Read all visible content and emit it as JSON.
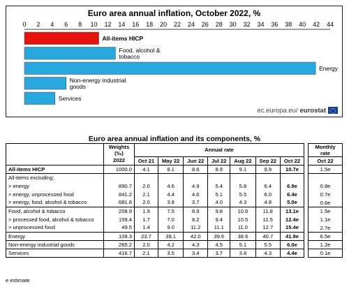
{
  "chart_data": {
    "type": "bar",
    "orientation": "horizontal",
    "title": "Euro area annual inflation, October 2022, %",
    "xlim": [
      0,
      44
    ],
    "xticks": [
      0,
      2,
      4,
      6,
      8,
      10,
      12,
      14,
      16,
      18,
      20,
      22,
      24,
      26,
      28,
      30,
      32,
      34,
      36,
      38,
      40,
      42,
      44
    ],
    "grid": false,
    "categories": [
      "All-items HICP",
      "Food, alcohol & tobacco",
      "Energy",
      "Non-energy industrial goods",
      "Services"
    ],
    "label_lines": [
      [
        "All-items HICP"
      ],
      [
        "Food, alcohol &",
        "tobacco"
      ],
      [
        "Energy"
      ],
      [
        "Non-energy industrial",
        "goods"
      ],
      [
        "Services"
      ]
    ],
    "values": [
      10.7,
      13.1,
      41.9,
      6.0,
      4.4
    ],
    "colors": [
      "#e8120c",
      "#29a8e0",
      "#29a8e0",
      "#29a8e0",
      "#29a8e0"
    ],
    "source": "ec.europa.eu/",
    "source_bold": "eurostat"
  },
  "table": {
    "title": "Euro area annual inflation and its components, %",
    "weights_header": "Weights",
    "weights_unit": "(‰)",
    "annual_rate_header": "Annual rate",
    "weights_year": "2022",
    "months": [
      "Oct 21",
      "May 22",
      "Jun 22",
      "Jul 22",
      "Aug 22",
      "Sep 22",
      "Oct 22"
    ],
    "monthly_rate_header_1": "Monthly",
    "monthly_rate_header_2": "rate",
    "monthly_rate_month": "Oct 22",
    "rows": [
      {
        "label": "All-items HICP",
        "weight": "1000.0",
        "values": [
          "4.1",
          "8.1",
          "8.6",
          "8.9",
          "9.1",
          "9.9",
          "10.7e"
        ],
        "monthly": "1.5e",
        "bold_label": true
      },
      {
        "label": "All-items excluding:",
        "weight": "",
        "values": [
          "",
          "",
          "",
          "",
          "",
          "",
          ""
        ],
        "monthly": "",
        "bold_label": false
      },
      {
        "label": "> energy",
        "weight": "890.7",
        "values": [
          "2.0",
          "4.6",
          "4.9",
          "5.4",
          "5.8",
          "6.4",
          "6.9e"
        ],
        "monthly": "0.8e",
        "bold_label": false
      },
      {
        "label": "> energy, unprocessed food",
        "weight": "841.2",
        "values": [
          "2.1",
          "4.4",
          "4.6",
          "5.1",
          "5.5",
          "6.0",
          "6.4e"
        ],
        "monthly": "0.7e",
        "bold_label": false
      },
      {
        "label": "> energy, food, alcohol & tobacco",
        "weight": "681.8",
        "values": [
          "2.0",
          "3.8",
          "3.7",
          "4.0",
          "4.3",
          "4.8",
          "5.0e"
        ],
        "monthly": "0.6e",
        "bold_label": false
      },
      {
        "label": "Food, alcohol & tobacco",
        "weight": "208.9",
        "values": [
          "1.9",
          "7.5",
          "8.9",
          "9.8",
          "10.6",
          "11.8",
          "13.1e"
        ],
        "monthly": "1.5e",
        "bold_label": false
      },
      {
        "label": "> processed food, alcohol & tobacco",
        "weight": "159.4",
        "values": [
          "1.7",
          "7.0",
          "8.2",
          "9.4",
          "10.5",
          "11.5",
          "12.4e"
        ],
        "monthly": "1.1e",
        "bold_label": false
      },
      {
        "label": "> unprocessed food",
        "weight": "49.5",
        "values": [
          "1.4",
          "9.0",
          "11.2",
          "11.1",
          "11.0",
          "12.7",
          "15.4e"
        ],
        "monthly": "2.7e",
        "bold_label": false
      },
      {
        "label": "Energy",
        "weight": "109.3",
        "values": [
          "23.7",
          "39.1",
          "42.0",
          "39.6",
          "38.6",
          "40.7",
          "41.9e"
        ],
        "monthly": "6.5e",
        "bold_label": false
      },
      {
        "label": "Non-energy industrial goods",
        "weight": "265.2",
        "values": [
          "2.0",
          "4.2",
          "4.3",
          "4.5",
          "5.1",
          "5.5",
          "6.0e"
        ],
        "monthly": "1.2e",
        "bold_label": false
      },
      {
        "label": "Services",
        "weight": "416.7",
        "values": [
          "2.1",
          "3.5",
          "3.4",
          "3.7",
          "3.8",
          "4.3",
          "4.4e"
        ],
        "monthly": "0.1e",
        "bold_label": false
      }
    ],
    "note": "e estimate"
  }
}
